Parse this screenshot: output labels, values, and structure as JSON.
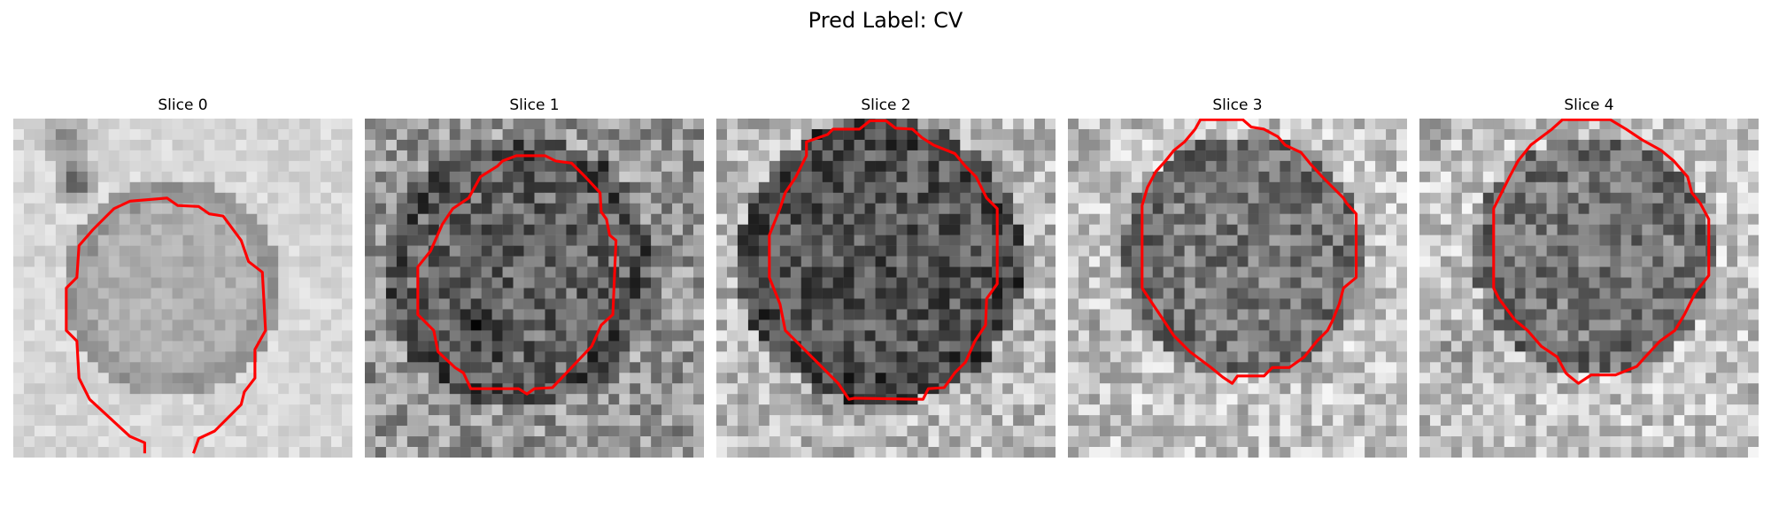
{
  "figure": {
    "suptitle": "Pred Label: CV",
    "colormap": "gray",
    "contour_color": "#ff0000"
  },
  "panels": [
    {
      "title": "Slice 0",
      "texture": "slice-0"
    },
    {
      "title": "Slice 1",
      "texture": "slice-1"
    },
    {
      "title": "Slice 2",
      "texture": "slice-2"
    },
    {
      "title": "Slice 3",
      "texture": "slice-3"
    },
    {
      "title": "Slice 4",
      "texture": "slice-4"
    }
  ]
}
